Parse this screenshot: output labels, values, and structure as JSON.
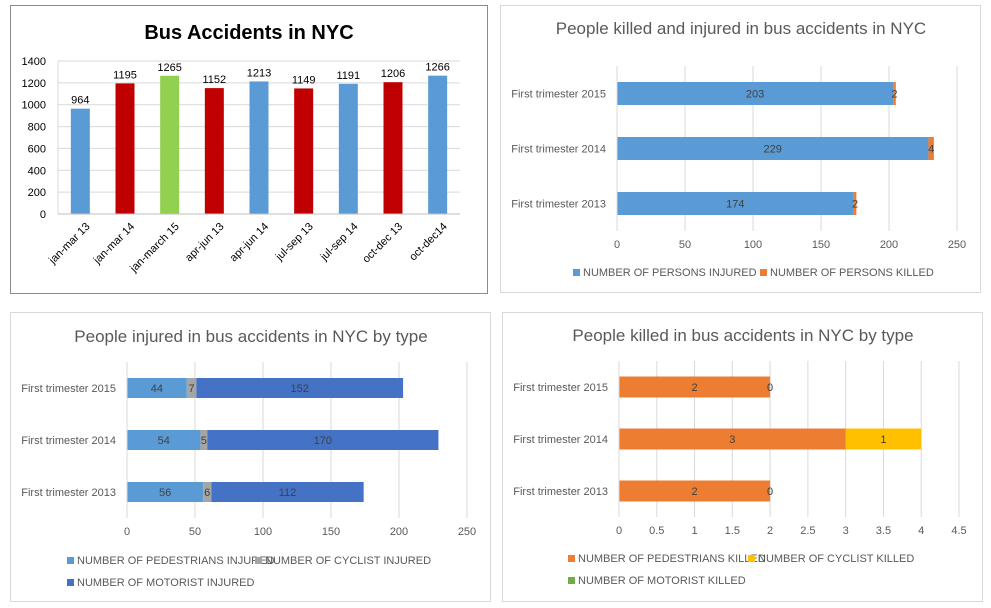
{
  "chart_data": [
    {
      "type": "bar",
      "title": "Bus Accidents in NYC",
      "categories": [
        "jan-mar 13",
        "jan-mar 14",
        "jan-march 15",
        "apr-jun 13",
        "apr-jun 14",
        "jul-sep 13",
        "jul-sep 14",
        "oct-dec 13",
        "oct-dec14"
      ],
      "values": [
        964,
        1195,
        1265,
        1152,
        1213,
        1149,
        1191,
        1206,
        1266
      ],
      "bar_colors": [
        "#5b9bd5",
        "#c00000",
        "#92d050",
        "#c00000",
        "#5b9bd5",
        "#c00000",
        "#5b9bd5",
        "#c00000",
        "#5b9bd5"
      ],
      "ylim": [
        0,
        1400
      ],
      "yticks": [
        "0",
        "200",
        "400",
        "600",
        "800",
        "1000",
        "1200",
        "1400"
      ],
      "grid": true
    },
    {
      "type": "bar",
      "orientation": "horizontal",
      "stacked": true,
      "title": "People killed and injured in bus accidents in NYC",
      "categories": [
        "First trimester 2015",
        "First trimester 2014",
        "First trimester 2013"
      ],
      "series": [
        {
          "name": "NUMBER OF PERSONS INJURED",
          "values": [
            203,
            229,
            174
          ],
          "color": "#5b9bd5"
        },
        {
          "name": "NUMBER OF PERSONS KILLED",
          "values": [
            2,
            4,
            2
          ],
          "color": "#ed7d31"
        }
      ],
      "xlim": [
        0,
        250
      ],
      "xticks": [
        "0",
        "50",
        "100",
        "150",
        "200",
        "250"
      ],
      "legend": "bottom",
      "grid": true
    },
    {
      "type": "bar",
      "orientation": "horizontal",
      "stacked": true,
      "title": "People injured in bus accidents in NYC by type",
      "categories": [
        "First trimester 2015",
        "First trimester 2014",
        "First trimester 2013"
      ],
      "series": [
        {
          "name": "NUMBER OF PEDESTRIANS INJURED",
          "values": [
            44,
            54,
            56
          ],
          "color": "#5b9bd5"
        },
        {
          "name": "NUMBER OF CYCLIST INJURED",
          "values": [
            7,
            5,
            6
          ],
          "color": "#a5a5a5"
        },
        {
          "name": "NUMBER OF MOTORIST INJURED",
          "values": [
            152,
            170,
            112
          ],
          "color": "#4472c4"
        }
      ],
      "xlim": [
        0,
        250
      ],
      "xticks": [
        "0",
        "50",
        "100",
        "150",
        "200",
        "250"
      ],
      "legend": "bottom",
      "grid": true
    },
    {
      "type": "bar",
      "orientation": "horizontal",
      "stacked": true,
      "title": "People killed in bus accidents in NYC by type",
      "categories": [
        "First trimester 2015",
        "First trimester 2014",
        "First trimester 2013"
      ],
      "series": [
        {
          "name": "NUMBER OF PEDESTRIANS KILLED",
          "values": [
            2,
            3,
            2
          ],
          "color": "#ed7d31"
        },
        {
          "name": "NUMBER OF CYCLIST KILLED",
          "values": [
            0,
            1,
            0
          ],
          "color": "#ffc000"
        },
        {
          "name": "NUMBER OF MOTORIST KILLED",
          "values": [
            0,
            0,
            0
          ],
          "color": "#70ad47"
        }
      ],
      "xlim": [
        0,
        4.5
      ],
      "xticks": [
        "0",
        "0.5",
        "1",
        "1.5",
        "2",
        "2.5",
        "3",
        "3.5",
        "4",
        "4.5"
      ],
      "legend": "bottom",
      "grid": true
    }
  ]
}
